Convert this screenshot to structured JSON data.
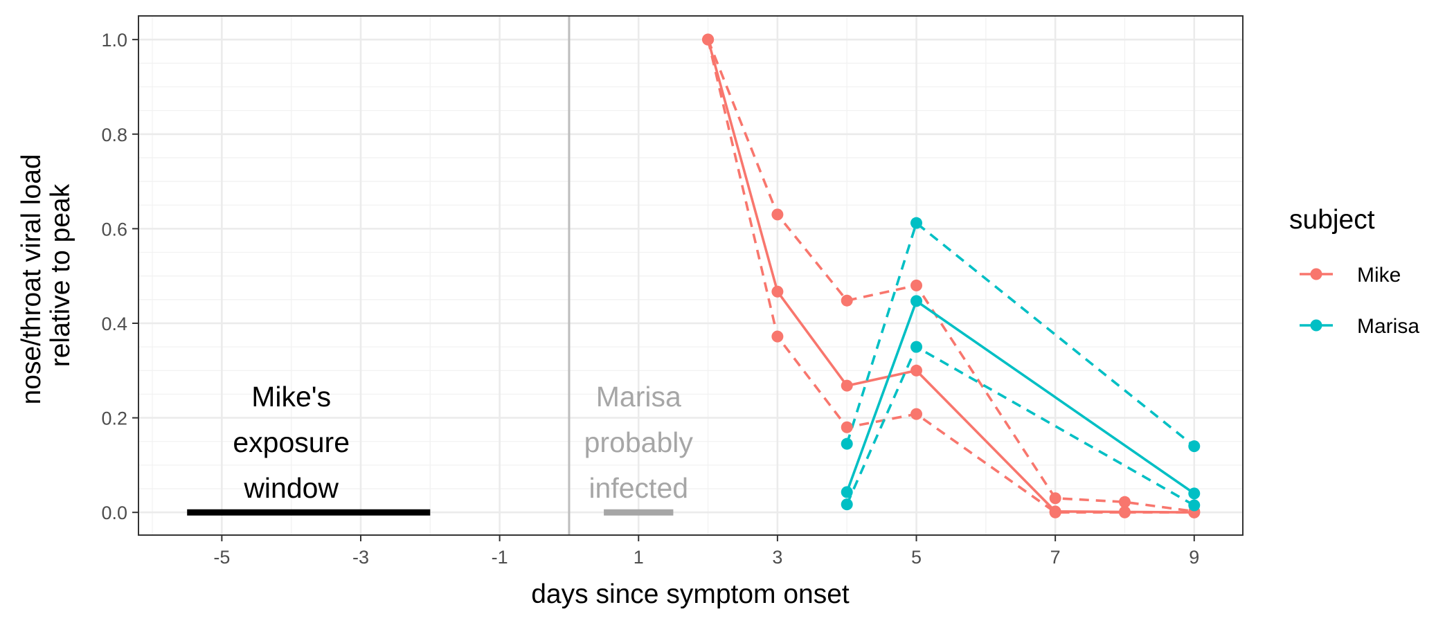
{
  "chart_data": {
    "type": "line",
    "title": "",
    "xlabel": "days since symptom onset",
    "ylabel_lines": [
      "nose/throat viral load",
      "relative to peak"
    ],
    "xlim": [
      -6.2,
      9.7
    ],
    "ylim": [
      -0.048,
      1.05
    ],
    "x_ticks": [
      -5,
      -3,
      -1,
      1,
      3,
      5,
      7,
      9
    ],
    "x_tick_labels": [
      "-5",
      "-3",
      "-1",
      "1",
      "3",
      "5",
      "7",
      "9"
    ],
    "y_ticks": [
      0.0,
      0.2,
      0.4,
      0.6,
      0.8,
      1.0
    ],
    "y_tick_labels": [
      "0.0",
      "0.2",
      "0.4",
      "0.6",
      "0.8",
      "1.0"
    ],
    "grid": true,
    "legend": {
      "title": "subject",
      "position": "right",
      "entries": [
        {
          "label": "Mike",
          "color": "#F8766D"
        },
        {
          "label": "Marisa",
          "color": "#00BFC4"
        }
      ]
    },
    "vline": {
      "x": 0,
      "color": "#bdbdbd"
    },
    "annotations": [
      {
        "lines": [
          "Mike's",
          "exposure",
          "window"
        ],
        "x": -4,
        "color": "#000000",
        "bar": {
          "x0": -5.5,
          "x1": -2,
          "y": 0
        }
      },
      {
        "lines": [
          "Marisa",
          "probably",
          "infected"
        ],
        "x": 1,
        "color": "#a6a6a6",
        "bar": {
          "x0": 0.5,
          "x1": 1.5,
          "y": 0
        }
      }
    ],
    "series": [
      {
        "name": "Mike",
        "color": "#F8766D",
        "style": "solid",
        "points": [
          [
            2,
            1.0
          ],
          [
            3,
            0.467
          ],
          [
            4,
            0.268
          ],
          [
            5,
            0.3
          ],
          [
            7,
            0.002
          ],
          [
            8,
            0.001
          ],
          [
            9,
            0.0
          ]
        ]
      },
      {
        "name": "Mike",
        "color": "#F8766D",
        "style": "dashed",
        "points": [
          [
            2,
            1.0
          ],
          [
            3,
            0.63
          ],
          [
            4,
            0.448
          ],
          [
            5,
            0.48
          ],
          [
            7,
            0.03
          ],
          [
            8,
            0.022
          ],
          [
            9,
            0.002
          ]
        ]
      },
      {
        "name": "Mike",
        "color": "#F8766D",
        "style": "dashed",
        "points": [
          [
            2,
            1.0
          ],
          [
            3,
            0.372
          ],
          [
            4,
            0.18
          ],
          [
            5,
            0.208
          ],
          [
            7,
            0.0
          ],
          [
            8,
            0.0
          ],
          [
            9,
            0.0
          ]
        ]
      },
      {
        "name": "Marisa",
        "color": "#00BFC4",
        "style": "solid",
        "points": [
          [
            4,
            0.043
          ],
          [
            5,
            0.447
          ],
          [
            9,
            0.04
          ]
        ]
      },
      {
        "name": "Marisa",
        "color": "#00BFC4",
        "style": "dashed",
        "points": [
          [
            4,
            0.145
          ],
          [
            5,
            0.612
          ],
          [
            9,
            0.14
          ]
        ]
      },
      {
        "name": "Marisa",
        "color": "#00BFC4",
        "style": "dashed",
        "points": [
          [
            4,
            0.017
          ],
          [
            5,
            0.35
          ],
          [
            9,
            0.015
          ]
        ]
      }
    ]
  }
}
